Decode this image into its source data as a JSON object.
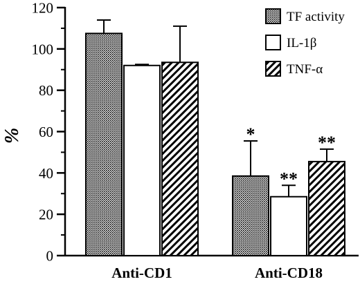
{
  "chart_data": {
    "type": "bar",
    "title": "",
    "xlabel": "",
    "ylabel": "%",
    "ylim": [
      0,
      120
    ],
    "yticks": [
      0,
      20,
      40,
      60,
      80,
      100,
      120
    ],
    "grid": false,
    "legend_position": "top-right",
    "categories": [
      "Anti-CD1",
      "Anti-CD18"
    ],
    "series": [
      {
        "name": "TF activity",
        "pattern": "crosshatch",
        "values": [
          107.5,
          38.5
        ],
        "error": [
          6.5,
          17
        ]
      },
      {
        "name": "IL-1β",
        "pattern": "white",
        "values": [
          92,
          28.5
        ],
        "error": [
          0.5,
          5.5
        ]
      },
      {
        "name": "TNF-α",
        "pattern": "diagonal",
        "values": [
          93.5,
          45.5
        ],
        "error": [
          17.5,
          6
        ]
      }
    ],
    "annotations": [
      {
        "category": "Anti-CD18",
        "series": "TF activity",
        "text": "*"
      },
      {
        "category": "Anti-CD18",
        "series": "IL-1β",
        "text": "**"
      },
      {
        "category": "Anti-CD18",
        "series": "TNF-α",
        "text": "**"
      }
    ],
    "colors": {
      "ink": "#000000",
      "background": "#ffffff"
    }
  }
}
